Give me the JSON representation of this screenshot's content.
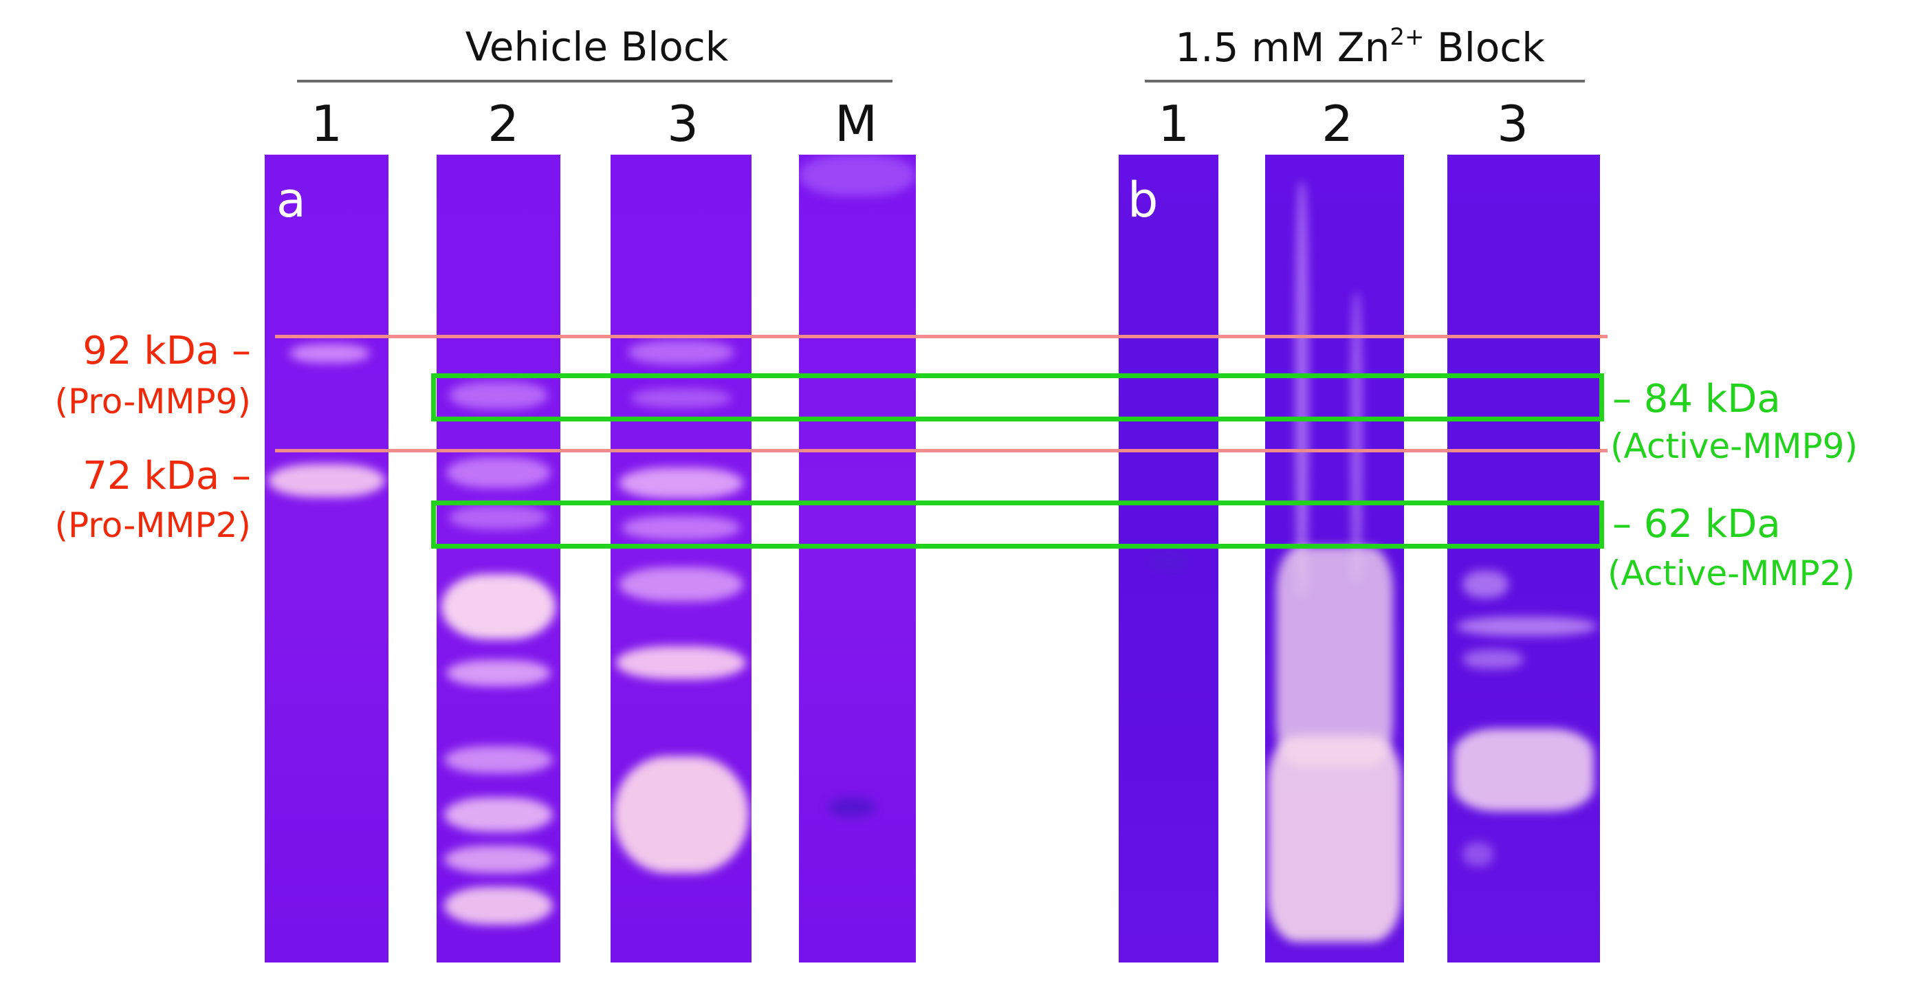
{
  "groups": {
    "vehicle": {
      "title": "Vehicle Block"
    },
    "zinc": {
      "title_prefix": "1.5 mM Zn",
      "title_sup": "2+",
      "title_suffix": " Block"
    }
  },
  "panels": {
    "a": "a",
    "b": "b"
  },
  "lanes_vehicle": [
    "1",
    "2",
    "3",
    "M"
  ],
  "lanes_zinc": [
    "1",
    "2",
    "3"
  ],
  "markers_left": [
    {
      "kda": "92 kDa –",
      "name": "(Pro-MMP9)"
    },
    {
      "kda": "72 kDa –",
      "name": "(Pro-MMP2)"
    }
  ],
  "markers_right": [
    {
      "kda": "– 84 kDa",
      "name": "(Active-MMP9)"
    },
    {
      "kda": "– 62 kDa",
      "name": "(Active-MMP2)"
    }
  ],
  "colors": {
    "pro_marker": "#f0290a",
    "active_marker": "#22d21d",
    "reference_line": "#f28b8b",
    "gel_vehicle": "#7c15f0",
    "gel_zinc": "#6010e2"
  }
}
